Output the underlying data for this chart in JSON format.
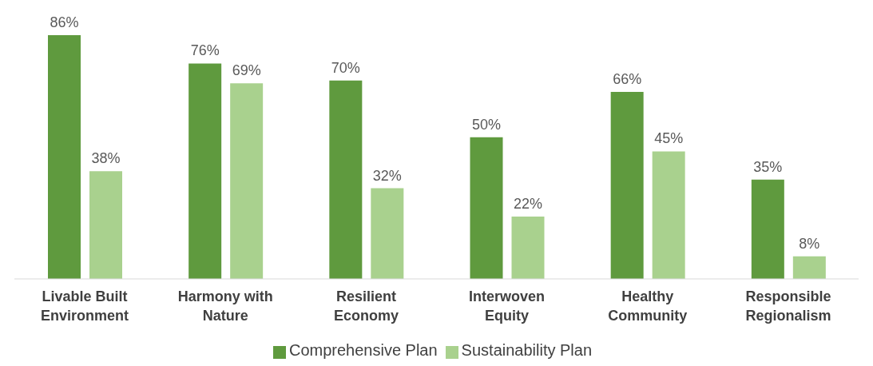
{
  "chart_data": {
    "type": "bar",
    "categories": [
      "Livable Built Environment",
      "Harmony with Nature",
      "Resilient Economy",
      "Interwoven Equity",
      "Healthy Community",
      "Responsible Regionalism"
    ],
    "series": [
      {
        "name": "Comprehensive Plan",
        "color": "#5f9a3e",
        "values": [
          86,
          76,
          70,
          50,
          66,
          35
        ],
        "value_labels": [
          "86%",
          "76%",
          "70%",
          "50%",
          "66%",
          "35%"
        ]
      },
      {
        "name": "Sustainability Plan",
        "color": "#a9d18e",
        "values": [
          38,
          69,
          32,
          22,
          45,
          8
        ],
        "value_labels": [
          "38%",
          "69%",
          "32%",
          "22%",
          "45%",
          "8%"
        ]
      }
    ],
    "legend": "bottom"
  }
}
